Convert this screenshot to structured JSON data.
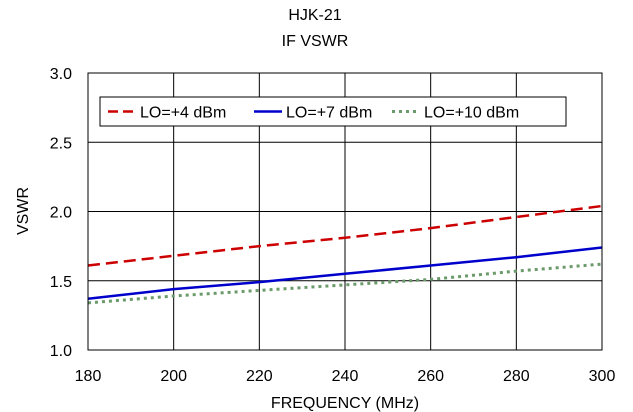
{
  "chart_data": {
    "type": "line",
    "title": [
      "HJK-21",
      "IF VSWR"
    ],
    "xlabel": "FREQUENCY (MHz)",
    "ylabel": "VSWR",
    "xlim": [
      180,
      300
    ],
    "ylim": [
      1.0,
      3.0
    ],
    "xticks": [
      180,
      200,
      220,
      240,
      260,
      280,
      300
    ],
    "yticks": [
      1.0,
      1.5,
      2.0,
      2.5,
      3.0
    ],
    "xtick_labels": [
      "180",
      "200",
      "220",
      "240",
      "260",
      "280",
      "300"
    ],
    "ytick_labels": [
      "1.0",
      "1.5",
      "2.0",
      "2.5",
      "3.0"
    ],
    "grid": true,
    "legend_position": "top-left",
    "series": [
      {
        "name": "LO=+4 dBm",
        "color": "#cc0000",
        "dash": "dash",
        "x": [
          180,
          200,
          220,
          240,
          260,
          280,
          300
        ],
        "y": [
          1.61,
          1.68,
          1.75,
          1.81,
          1.88,
          1.96,
          2.04
        ]
      },
      {
        "name": "LO=+7 dBm",
        "color": "#0000cc",
        "dash": "solid",
        "x": [
          180,
          200,
          220,
          240,
          260,
          280,
          300
        ],
        "y": [
          1.37,
          1.44,
          1.49,
          1.55,
          1.61,
          1.67,
          1.74
        ]
      },
      {
        "name": "LO=+10 dBm",
        "color": "#6b9a6b",
        "dash": "dot",
        "x": [
          180,
          200,
          220,
          240,
          260,
          280,
          300
        ],
        "y": [
          1.34,
          1.39,
          1.43,
          1.47,
          1.51,
          1.57,
          1.62
        ]
      }
    ]
  }
}
